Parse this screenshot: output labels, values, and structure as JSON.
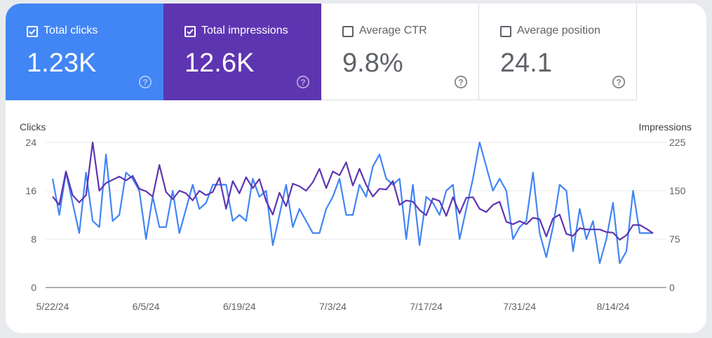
{
  "metrics": [
    {
      "label": "Total clicks",
      "value": "1.23K",
      "checked": true,
      "color": "#4285f4"
    },
    {
      "label": "Total impressions",
      "value": "12.6K",
      "checked": true,
      "color": "#5e35b1"
    },
    {
      "label": "Average CTR",
      "value": "9.8%",
      "checked": false
    },
    {
      "label": "Average position",
      "value": "24.1",
      "checked": false
    }
  ],
  "icons": {
    "checkbox": "check-icon",
    "help": "help-circle-icon"
  },
  "chart_data": {
    "type": "line",
    "title": "",
    "left_axis": {
      "label": "Clicks",
      "ylim": [
        0,
        24
      ],
      "ticks": [
        "0",
        "8",
        "16",
        "24"
      ]
    },
    "right_axis": {
      "label": "Impressions",
      "ylim": [
        0,
        225
      ],
      "ticks": [
        "0",
        "75",
        "150",
        "225"
      ]
    },
    "x_ticks": [
      "5/22/24",
      "6/5/24",
      "6/19/24",
      "7/3/24",
      "7/17/24",
      "7/31/24",
      "8/14/24"
    ],
    "x_range": [
      "5/22/24",
      "8/20/24"
    ],
    "grid": true,
    "series": [
      {
        "name": "Clicks",
        "axis": "left",
        "color": "#4285f4",
        "values": [
          18,
          12,
          19,
          14,
          9,
          19,
          11,
          10,
          22,
          11,
          12,
          19,
          18,
          16,
          8,
          15,
          10,
          10,
          16,
          9,
          13,
          17,
          13,
          14,
          17,
          17,
          17,
          11,
          12,
          11,
          18,
          15,
          16,
          7,
          12,
          17,
          10,
          13,
          11,
          9,
          9,
          13,
          15,
          18,
          12,
          12,
          17,
          15,
          20,
          22,
          18,
          17,
          18,
          8,
          17,
          7,
          15,
          14,
          12,
          16,
          17,
          8,
          13,
          18,
          24,
          20,
          16,
          18,
          16,
          8,
          10,
          11,
          19,
          9,
          5,
          10,
          17,
          16,
          6,
          13,
          8,
          11,
          4,
          8,
          14,
          4,
          6,
          16,
          9,
          9,
          9
        ]
      },
      {
        "name": "Impressions",
        "axis": "right",
        "color": "#5e35b1",
        "values": [
          141,
          128,
          180,
          143,
          132,
          143,
          225,
          150,
          162,
          167,
          172,
          166,
          173,
          153,
          149,
          141,
          190,
          148,
          137,
          150,
          146,
          135,
          150,
          143,
          148,
          170,
          122,
          165,
          146,
          171,
          154,
          168,
          134,
          113,
          147,
          126,
          161,
          157,
          150,
          163,
          184,
          154,
          180,
          174,
          194,
          158,
          184,
          159,
          141,
          153,
          152,
          165,
          128,
          135,
          133,
          120,
          112,
          138,
          134,
          111,
          140,
          115,
          139,
          140,
          122,
          117,
          128,
          133,
          102,
          98,
          103,
          98,
          108,
          106,
          79,
          107,
          113,
          83,
          80,
          92,
          90,
          90,
          90,
          86,
          85,
          74,
          81,
          97,
          97,
          91,
          84
        ]
      }
    ]
  }
}
